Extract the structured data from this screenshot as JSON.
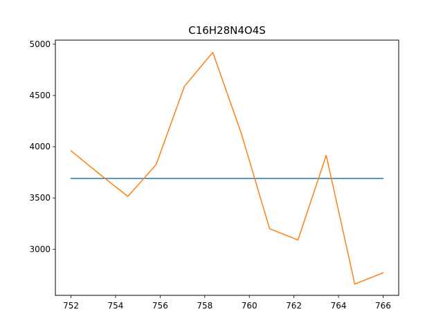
{
  "chart_data": {
    "type": "line",
    "title": "C16H28N4O4S",
    "xlabel": "",
    "ylabel": "",
    "xlim": [
      751.3,
      766.7
    ],
    "ylim": [
      2550,
      5040
    ],
    "x_ticks": [
      752,
      754,
      756,
      758,
      760,
      762,
      764,
      766
    ],
    "y_ticks": [
      3000,
      3500,
      4000,
      4500,
      5000
    ],
    "grid": false,
    "series": [
      {
        "color": "#1f77b4",
        "x": [
          752,
          766
        ],
        "y": [
          3690,
          3690
        ]
      },
      {
        "color": "#ff7f0e",
        "x": [
          752,
          753.27,
          754.55,
          755.82,
          757.09,
          758.36,
          759.64,
          760.91,
          762.18,
          763.45,
          764.73,
          766
        ],
        "y": [
          3960,
          3735,
          3515,
          3825,
          4590,
          4920,
          4130,
          3200,
          3090,
          3915,
          2660,
          2770
        ]
      }
    ]
  }
}
